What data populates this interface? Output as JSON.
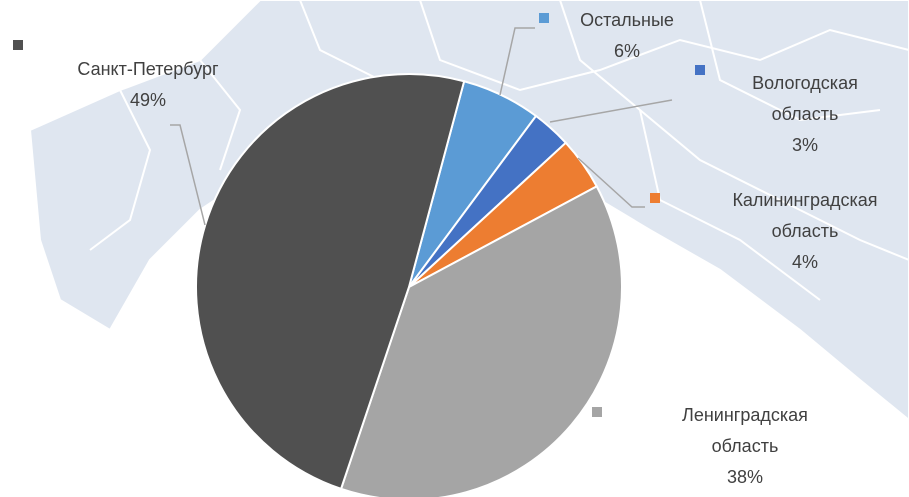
{
  "chart_data": {
    "type": "pie",
    "categories": [
      "Остальные",
      "Вологодская область",
      "Калининградская область",
      "Ленинградская область",
      "Санкт-Петербург"
    ],
    "values": [
      6,
      3,
      4,
      38,
      49
    ],
    "value_labels": [
      "6%",
      "3%",
      "4%",
      "38%",
      "49%"
    ],
    "colors": [
      "#5b9bd5",
      "#4472c4",
      "#ed7d31",
      "#a5a5a5",
      "#505050"
    ]
  }
}
